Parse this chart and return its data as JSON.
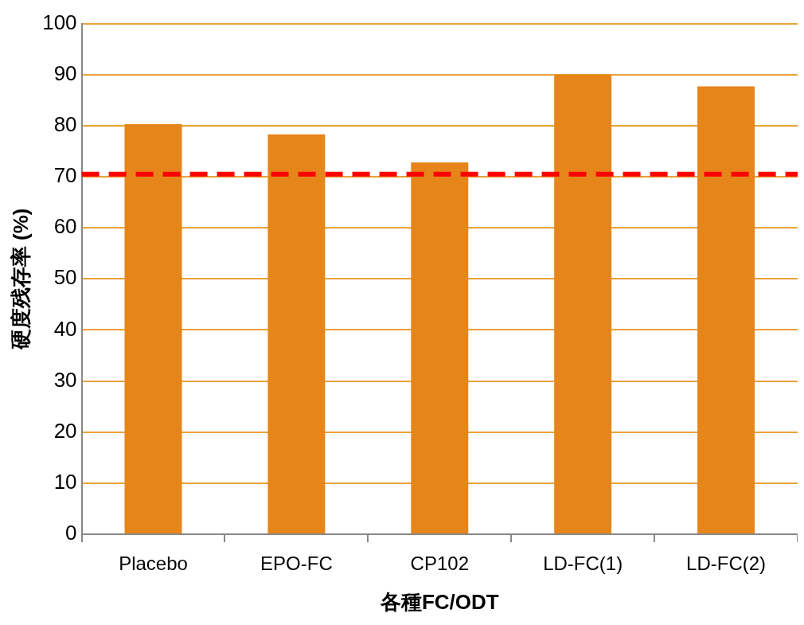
{
  "chart_data": {
    "type": "bar",
    "xlabel": "各種FC/ODT",
    "ylabel": "硬度残存率 (%)",
    "categories": [
      "Placebo",
      "EPO-FC",
      "CP102",
      "LD-FC(1)",
      "LD-FC(2)"
    ],
    "values": [
      80.3,
      78.3,
      72.8,
      90,
      87.7
    ],
    "color": "#e6851a",
    "ylim": [
      0,
      100
    ],
    "yticks": [
      0,
      10,
      20,
      30,
      40,
      50,
      60,
      70,
      80,
      90,
      100
    ],
    "grid": "y",
    "ref_lines": [
      {
        "axis": "y",
        "value": 70.5,
        "color": "#ff0000",
        "line_style": "dashed"
      }
    ],
    "legend": false
  }
}
